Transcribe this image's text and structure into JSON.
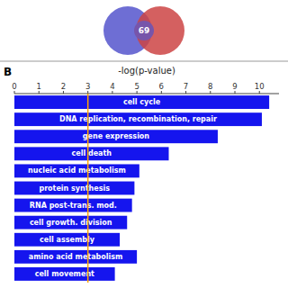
{
  "chart_data": {
    "type": "bar",
    "orientation": "horizontal",
    "xlabel": "-log(p-value)",
    "categories": [
      "cell cycle",
      "DNA replication, recombination, repair",
      "gene expression",
      "cell death",
      "nucleic acid metabolism",
      "protein synthesis",
      "RNA post-trans. mod.",
      "cell growth. division",
      "cell assembly",
      "amino acid metabolism",
      "cell movement"
    ],
    "values": [
      10.4,
      10.1,
      8.3,
      6.3,
      5.1,
      4.9,
      4.8,
      4.6,
      4.3,
      5.0,
      4.1
    ],
    "color": "#1515ee",
    "xlim": [
      0,
      10.8
    ],
    "xticks": [
      0,
      1,
      2,
      3,
      4,
      5,
      6,
      7,
      8,
      9,
      10
    ],
    "reference_line": {
      "x": 3.0,
      "color": "#FFA500"
    },
    "annotations": [
      "B",
      "69"
    ],
    "grid": false
  }
}
